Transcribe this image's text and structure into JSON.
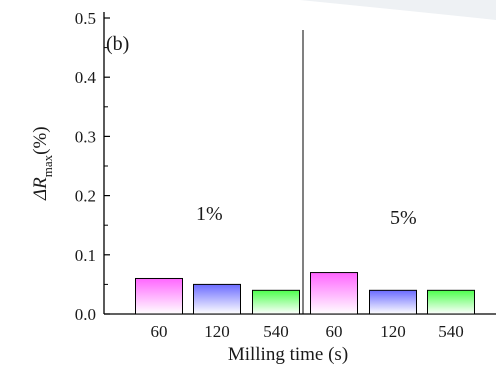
{
  "chart_data": {
    "type": "bar",
    "panel_label": "(b)",
    "categories": [
      "60",
      "120",
      "540",
      "60",
      "120",
      "540"
    ],
    "values": [
      0.06,
      0.05,
      0.04,
      0.07,
      0.04,
      0.04
    ],
    "groups": [
      {
        "label": "1%",
        "milling_times": [
          "60",
          "120",
          "540"
        ],
        "values": [
          0.06,
          0.05,
          0.04
        ]
      },
      {
        "label": "5%",
        "milling_times": [
          "60",
          "120",
          "540"
        ],
        "values": [
          0.07,
          0.04,
          0.04
        ]
      }
    ],
    "bar_colors": [
      "#ff66ff",
      "#6b6bff",
      "#4dff4d",
      "#ff66ff",
      "#6b6bff",
      "#4dff4d"
    ],
    "xlabel": "Milling time (s)",
    "ylabel_symbol": "ΔR",
    "ylabel_subscript": "max",
    "ylabel_unit": "(%)",
    "yticks": [
      "0.0",
      "0.1",
      "0.2",
      "0.3",
      "0.4",
      "0.5"
    ],
    "ylim": [
      0,
      0.5
    ],
    "grid": false
  }
}
